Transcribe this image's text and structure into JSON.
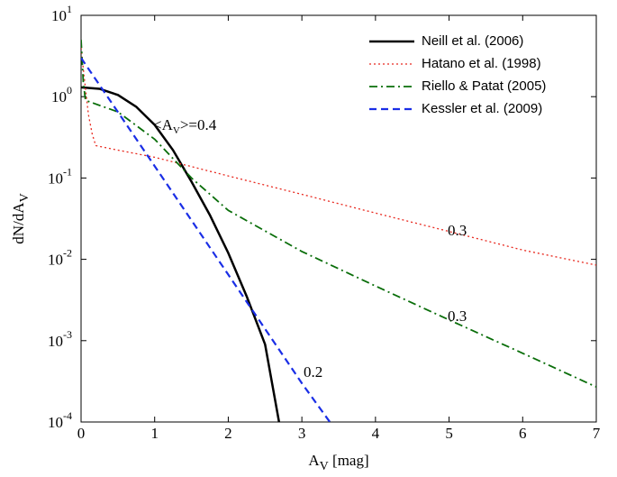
{
  "chart_data": {
    "type": "line",
    "x_label": {
      "text": "A",
      "sub": "V",
      "suffix": " [mag]"
    },
    "y_label": {
      "text": "dN/dA",
      "sub": "V"
    },
    "xlim": [
      0,
      7
    ],
    "xticks": [
      0,
      1,
      2,
      3,
      4,
      5,
      6,
      7
    ],
    "ylim": [
      0.0001,
      10
    ],
    "log_y": true,
    "yticks": [
      {
        "value": 10,
        "label": "10",
        "exponent": "1"
      },
      {
        "value": 1,
        "label": "10",
        "exponent": "0"
      },
      {
        "value": 0.1,
        "label": "10",
        "exponent": "-1"
      },
      {
        "value": 0.01,
        "label": "10",
        "exponent": "-2"
      },
      {
        "value": 0.001,
        "label": "10",
        "exponent": "-3"
      },
      {
        "value": 0.0001,
        "label": "10",
        "exponent": "-4"
      }
    ],
    "legend": "upper right",
    "series": [
      {
        "name": "Neill et al. (2006)",
        "color": "#000000",
        "linestyle": "solid",
        "width": 2.5,
        "x": [
          0,
          0.25,
          0.5,
          0.75,
          1.0,
          1.25,
          1.5,
          1.75,
          2.0,
          2.25,
          2.5,
          2.69
        ],
        "values": [
          1.3,
          1.25,
          1.05,
          0.75,
          0.45,
          0.22,
          0.09,
          0.035,
          0.012,
          0.0035,
          0.0009,
          0.0001
        ]
      },
      {
        "name": "Hatano et al. (1998)",
        "color": "#e8281e",
        "linestyle": "dotted",
        "width": 1.3,
        "x": [
          0,
          0.05,
          0.1,
          0.15,
          0.2,
          0.5,
          1,
          2,
          3,
          4,
          5,
          6,
          7
        ],
        "values": [
          4,
          1.5,
          0.6,
          0.35,
          0.25,
          0.22,
          0.18,
          0.106,
          0.063,
          0.037,
          0.022,
          0.013,
          0.0085
        ]
      },
      {
        "name": "Riello & Patat (2005)",
        "color": "#0a6e0a",
        "linestyle": "dashdot",
        "width": 1.8,
        "x": [
          0,
          0.03,
          0.06,
          0.5,
          1,
          1.5,
          2,
          3,
          4,
          5,
          6,
          7
        ],
        "values": [
          5,
          1.5,
          0.9,
          0.65,
          0.3,
          0.1,
          0.04,
          0.0125,
          0.0047,
          0.0018,
          0.0007,
          0.00027
        ]
      },
      {
        "name": "Kessler et al. (2009)",
        "color": "#1a2ee6",
        "linestyle": "dashed",
        "width": 2.2,
        "x": [
          0,
          1,
          2,
          3,
          3.38
        ],
        "values": [
          3,
          0.14,
          0.0065,
          0.0003,
          0.0001
        ]
      }
    ],
    "annotations": [
      {
        "text": "<A",
        "sub": "V",
        "suffix": ">=0.4",
        "color": "#000000"
      },
      {
        "text": "0.3",
        "color": "#e8281e"
      },
      {
        "text": "0.3",
        "color": "#0a6e0a"
      },
      {
        "text": "0.2",
        "color": "#1a2ee6"
      }
    ]
  }
}
